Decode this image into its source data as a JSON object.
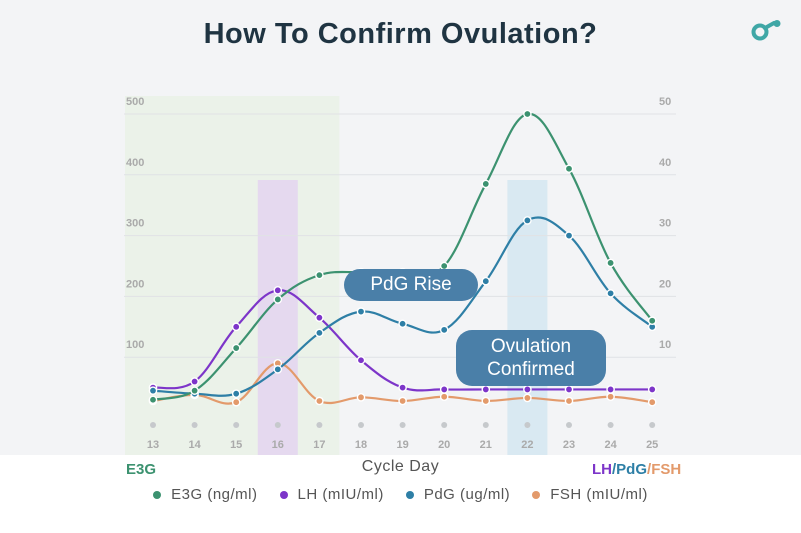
{
  "title": "How To Confirm Ovulation?",
  "logo_icon": "brand-logo-icon",
  "callouts": {
    "pdg_rise": "PdG Rise",
    "ovulation_line1": "Ovulation",
    "ovulation_line2": "Confirmed"
  },
  "axis_labels": {
    "left": "E3G",
    "x": "Cycle Day",
    "right_lh": "LH",
    "sep1": "/",
    "right_pdg": "PdG",
    "sep2": "/",
    "right_fsh": "FSH"
  },
  "legend": [
    {
      "label": "E3G (ng/ml)",
      "color": "#3c9270"
    },
    {
      "label": "LH (mIU/ml)",
      "color": "#7d35c9"
    },
    {
      "label": "PdG (ug/ml)",
      "color": "#2e7fa6"
    },
    {
      "label": "FSH (mIU/ml)",
      "color": "#e39a6b"
    }
  ],
  "colors": {
    "title": "#1f3442",
    "e3g": "#3c9270",
    "lh": "#7d35c9",
    "pdg": "#2e7fa6",
    "fsh": "#e39a6b",
    "callout": "#4a7fa8",
    "logo": "#3fa7a6"
  },
  "chart_data": {
    "type": "line",
    "title": "How To Confirm Ovulation?",
    "xlabel": "Cycle Day",
    "ylabel_left": "E3G",
    "ylabel_right": "LH/PdG/FSH",
    "x": [
      13,
      14,
      15,
      16,
      17,
      18,
      19,
      20,
      21,
      22,
      23,
      24,
      25
    ],
    "y_left_ticks": [
      100,
      200,
      300,
      400,
      500
    ],
    "y_right_ticks": [
      10,
      20,
      30,
      40,
      50
    ],
    "ylim_left": [
      0,
      500
    ],
    "ylim_right": [
      0,
      50
    ],
    "highlight_days": [
      {
        "day": 16,
        "color": "#e4d5f0"
      },
      {
        "day": 22,
        "color": "#d3e6f1"
      }
    ],
    "shaded_window": [
      13,
      17
    ],
    "series": [
      {
        "name": "E3G (ng/ml)",
        "axis": "left",
        "color": "#3c9270",
        "values": [
          30,
          45,
          115,
          195,
          235,
          240,
          240,
          250,
          385,
          500,
          410,
          255,
          160
        ]
      },
      {
        "name": "LH (mIU/ml)",
        "axis": "right",
        "color": "#7d35c9",
        "values": [
          5,
          6,
          15,
          21,
          16.5,
          9.5,
          5,
          4.7,
          4.7,
          4.7,
          4.7,
          4.7,
          4.7
        ]
      },
      {
        "name": "PdG (ug/ml)",
        "axis": "right",
        "color": "#2e7fa6",
        "values": [
          4.5,
          4,
          4,
          8,
          14,
          17.5,
          15.5,
          14.5,
          22.5,
          32.5,
          30,
          20.5,
          15
        ]
      },
      {
        "name": "FSH (mIU/ml)",
        "axis": "right",
        "color": "#e39a6b",
        "values": [
          2.8,
          3.8,
          2.6,
          9,
          2.8,
          3.4,
          2.8,
          3.5,
          2.8,
          3.3,
          2.8,
          3.5,
          2.6
        ]
      }
    ]
  }
}
